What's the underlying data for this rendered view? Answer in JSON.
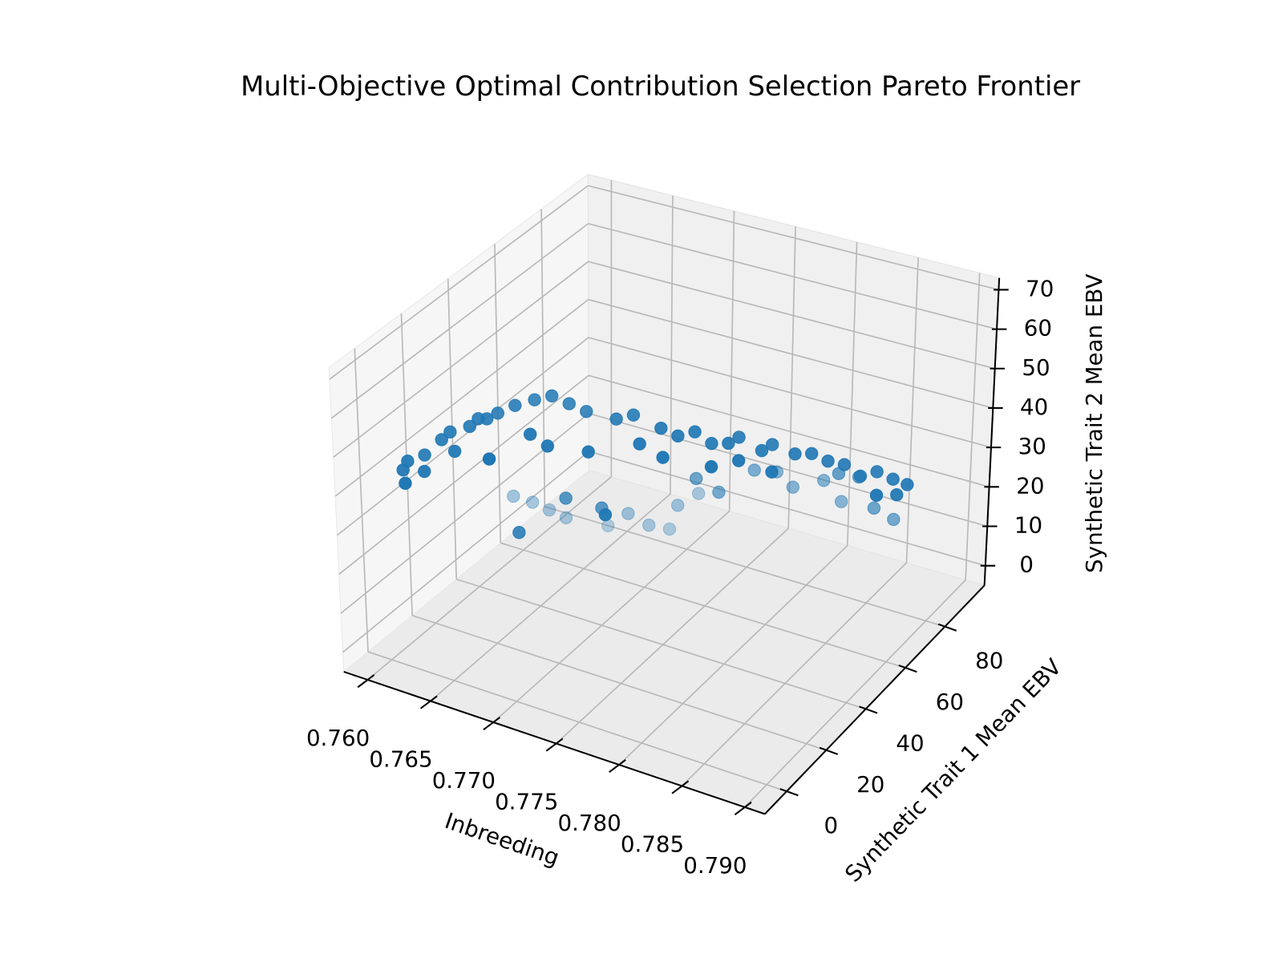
{
  "chart_data": {
    "type": "scatter3d",
    "title": "Multi-Objective Optimal Contribution Selection Pareto Frontier",
    "xlabel": "Inbreeding",
    "ylabel": "Synthetic Trait 1 Mean EBV",
    "zlabel": "Synthetic Trait 2 Mean EBV",
    "xlim": [
      0.7581,
      0.7916
    ],
    "ylim": [
      -11,
      100
    ],
    "zlim": [
      -5,
      73
    ],
    "xticks": [
      {
        "value": 0.76,
        "label": "0.760"
      },
      0.765,
      {
        "value": 0.77,
        "label": "0.770"
      },
      0.775,
      {
        "value": 0.78,
        "label": "0.780"
      },
      0.785,
      {
        "value": 0.79,
        "label": "0.790"
      }
    ],
    "yticks": [
      0,
      20,
      40,
      60,
      80
    ],
    "zticks": [
      0,
      10,
      20,
      30,
      40,
      50,
      60,
      70
    ],
    "grid": true,
    "series": [
      {
        "color": "#1f77b4",
        "x": [
          0.76,
          0.7602,
          0.7605,
          0.761,
          0.7613,
          0.762,
          0.7625,
          0.763,
          0.7635,
          0.764,
          0.7645,
          0.765,
          0.7655,
          0.766,
          0.767,
          0.7675,
          0.768,
          0.7685,
          0.769,
          0.77,
          0.771,
          0.772,
          0.773,
          0.774,
          0.775,
          0.7755,
          0.776,
          0.777,
          0.778,
          0.7785,
          0.779,
          0.7795,
          0.78,
          0.781,
          0.7815,
          0.782,
          0.783,
          0.784,
          0.785,
          0.786,
          0.787,
          0.788,
          0.7885,
          0.789,
          0.7895,
          0.79,
          0.762,
          0.763,
          0.764,
          0.765,
          0.767,
          0.769,
          0.77,
          0.771,
          0.772,
          0.773,
          0.77,
          0.775,
          0.776,
          0.778,
          0.779,
          0.78,
          0.782,
          0.783,
          0.784,
          0.785,
          0.786,
          0.787,
          0.772,
          0.768,
          0.766
        ],
        "y": [
          8,
          9,
          6,
          12,
          10,
          14,
          15,
          14,
          18,
          19,
          20,
          22,
          15,
          24,
          27,
          22,
          29,
          24,
          31,
          33,
          28,
          35,
          37,
          34,
          38,
          36,
          40,
          42,
          44,
          41,
          46,
          48,
          45,
          50,
          52,
          49,
          54,
          56,
          58,
          60,
          62,
          64,
          61,
          66,
          65,
          67,
          45,
          48,
          50,
          52,
          60,
          58,
          62,
          66,
          64,
          68,
          40,
          55,
          60,
          65,
          70,
          72,
          75,
          78,
          70,
          74,
          76,
          80,
          30,
          35,
          25
        ],
        "z": [
          40,
          42,
          38,
          43,
          40,
          47,
          49,
          45,
          50,
          52,
          52,
          53,
          45,
          55,
          56,
          50,
          57,
          47,
          55,
          53,
          46,
          52,
          53,
          48,
          51,
          45,
          49,
          50,
          47,
          43,
          47,
          48,
          44,
          45,
          46,
          41,
          44,
          44,
          42,
          41,
          38,
          39,
          35,
          37,
          34,
          36,
          18,
          16,
          14,
          12,
          8,
          14,
          10,
          8,
          16,
          18,
          25,
          30,
          25,
          30,
          28,
          24,
          26,
          20,
          32,
          30,
          22,
          18,
          30,
          28,
          22
        ]
      }
    ]
  }
}
